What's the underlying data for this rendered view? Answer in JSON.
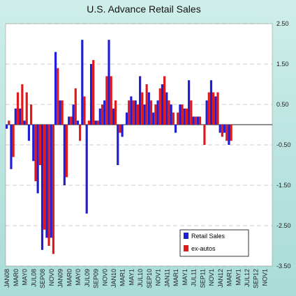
{
  "chart_data": {
    "type": "bar",
    "title": "U.S. Advance Retail Sales",
    "xlabel": "",
    "ylabel": "",
    "ylim": [
      -3.5,
      2.5
    ],
    "yticks": [
      2.5,
      1.5,
      0.5,
      -0.5,
      -1.5,
      -2.5,
      -3.5
    ],
    "ytick_labels": [
      "2.50",
      "1.50",
      "0.50",
      "-0.50",
      "-1.50",
      "-2.50",
      "-3.50"
    ],
    "grid": true,
    "legend_position": "bottom-right",
    "x_tick_labels": [
      "JAN08",
      "MAR0",
      "MAY0",
      "JUL08",
      "SEP08",
      "NOV0",
      "JAN09",
      "MAR0",
      "MAY0",
      "JUL09",
      "SEP09",
      "NOV0",
      "JAN10",
      "MAR1",
      "MAY1",
      "JUL10",
      "SEP10",
      "NOV1",
      "JAN11",
      "MAR1",
      "MAY1",
      "JUL11",
      "SEP11",
      "NOV1",
      "JAN12",
      "MAR1",
      "MAY1",
      "JUL12",
      "SEP12",
      "NOV1"
    ],
    "series": [
      {
        "name": "Retail Sales",
        "color": "#1f1fd6",
        "values": [
          -0.1,
          -1.1,
          0.4,
          0.4,
          0.1,
          -0.4,
          -0.9,
          -1.7,
          -3.1,
          -2.8,
          -2.8,
          1.8,
          0.6,
          -1.5,
          0.2,
          0.5,
          0.1,
          2.1,
          -2.2,
          1.5,
          0.1,
          0.4,
          0.6,
          2.1,
          0.4,
          -1.0,
          -0.3,
          0.3,
          0.7,
          0.6,
          1.2,
          0.5,
          0.8,
          0.3,
          0.6,
          1.0,
          0.8,
          0.5,
          -0.2,
          0.5,
          0.4,
          1.1,
          0.2,
          0.2,
          0.0,
          0.6,
          1.1,
          0.7,
          -0.2,
          -0.2,
          -0.5,
          0.0,
          0.0,
          0.0,
          0.0,
          0.0,
          0.0,
          0.0,
          0.0,
          0.0
        ]
      },
      {
        "name": "ex-autos",
        "color": "#e01a1a",
        "values": [
          0.1,
          -0.8,
          0.8,
          1.0,
          0.8,
          0.5,
          -1.4,
          -1.0,
          -2.6,
          -3.0,
          -3.2,
          1.4,
          0.6,
          -1.3,
          0.2,
          0.9,
          -0.4,
          0.7,
          0.1,
          1.6,
          0.1,
          0.5,
          1.2,
          1.2,
          0.6,
          -0.2,
          0.0,
          0.6,
          0.6,
          0.5,
          0.8,
          1.0,
          0.6,
          0.5,
          0.9,
          1.2,
          0.6,
          0.3,
          0.3,
          0.5,
          0.4,
          0.6,
          0.2,
          0.2,
          -0.5,
          0.8,
          0.8,
          0.8,
          -0.3,
          -0.4,
          -0.4,
          0.0,
          0.0,
          0.0,
          0.0,
          0.0,
          0.0,
          0.0,
          0.0,
          0.0
        ]
      }
    ]
  }
}
